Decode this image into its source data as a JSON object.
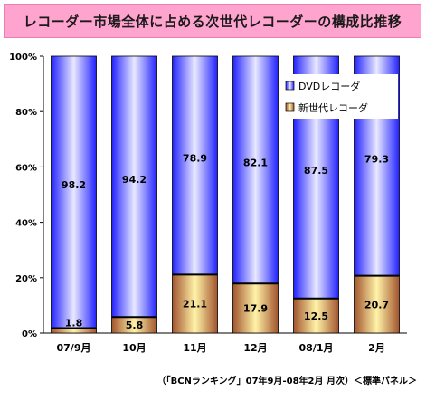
{
  "title": "レコーダー市場全体に占める次世代レコーダーの構成比推移",
  "footnote": "（「BCNランキング」07年9月-08年2月 月次）＜標準パネル＞",
  "colors": {
    "title_bg": "#ffa3cf",
    "dvd_fill": "#4b4bff",
    "nextgen_fill": "#d9c06a",
    "bar_stroke": "#000000"
  },
  "chart_data": {
    "type": "bar",
    "stacked": true,
    "percent": true,
    "categories": [
      "07/9月",
      "10月",
      "11月",
      "12月",
      "08/1月",
      "2月"
    ],
    "series": [
      {
        "name": "新世代レコーダ",
        "values": [
          1.8,
          5.8,
          21.1,
          17.9,
          12.5,
          20.7
        ]
      },
      {
        "name": "DVDレコーダ",
        "values": [
          98.2,
          94.2,
          78.9,
          82.1,
          87.5,
          79.3
        ]
      }
    ],
    "ylim": [
      0,
      100
    ],
    "yticks": [
      "0%",
      "20%",
      "40%",
      "60%",
      "80%",
      "100%"
    ],
    "grid": false,
    "legend": "top-right"
  }
}
